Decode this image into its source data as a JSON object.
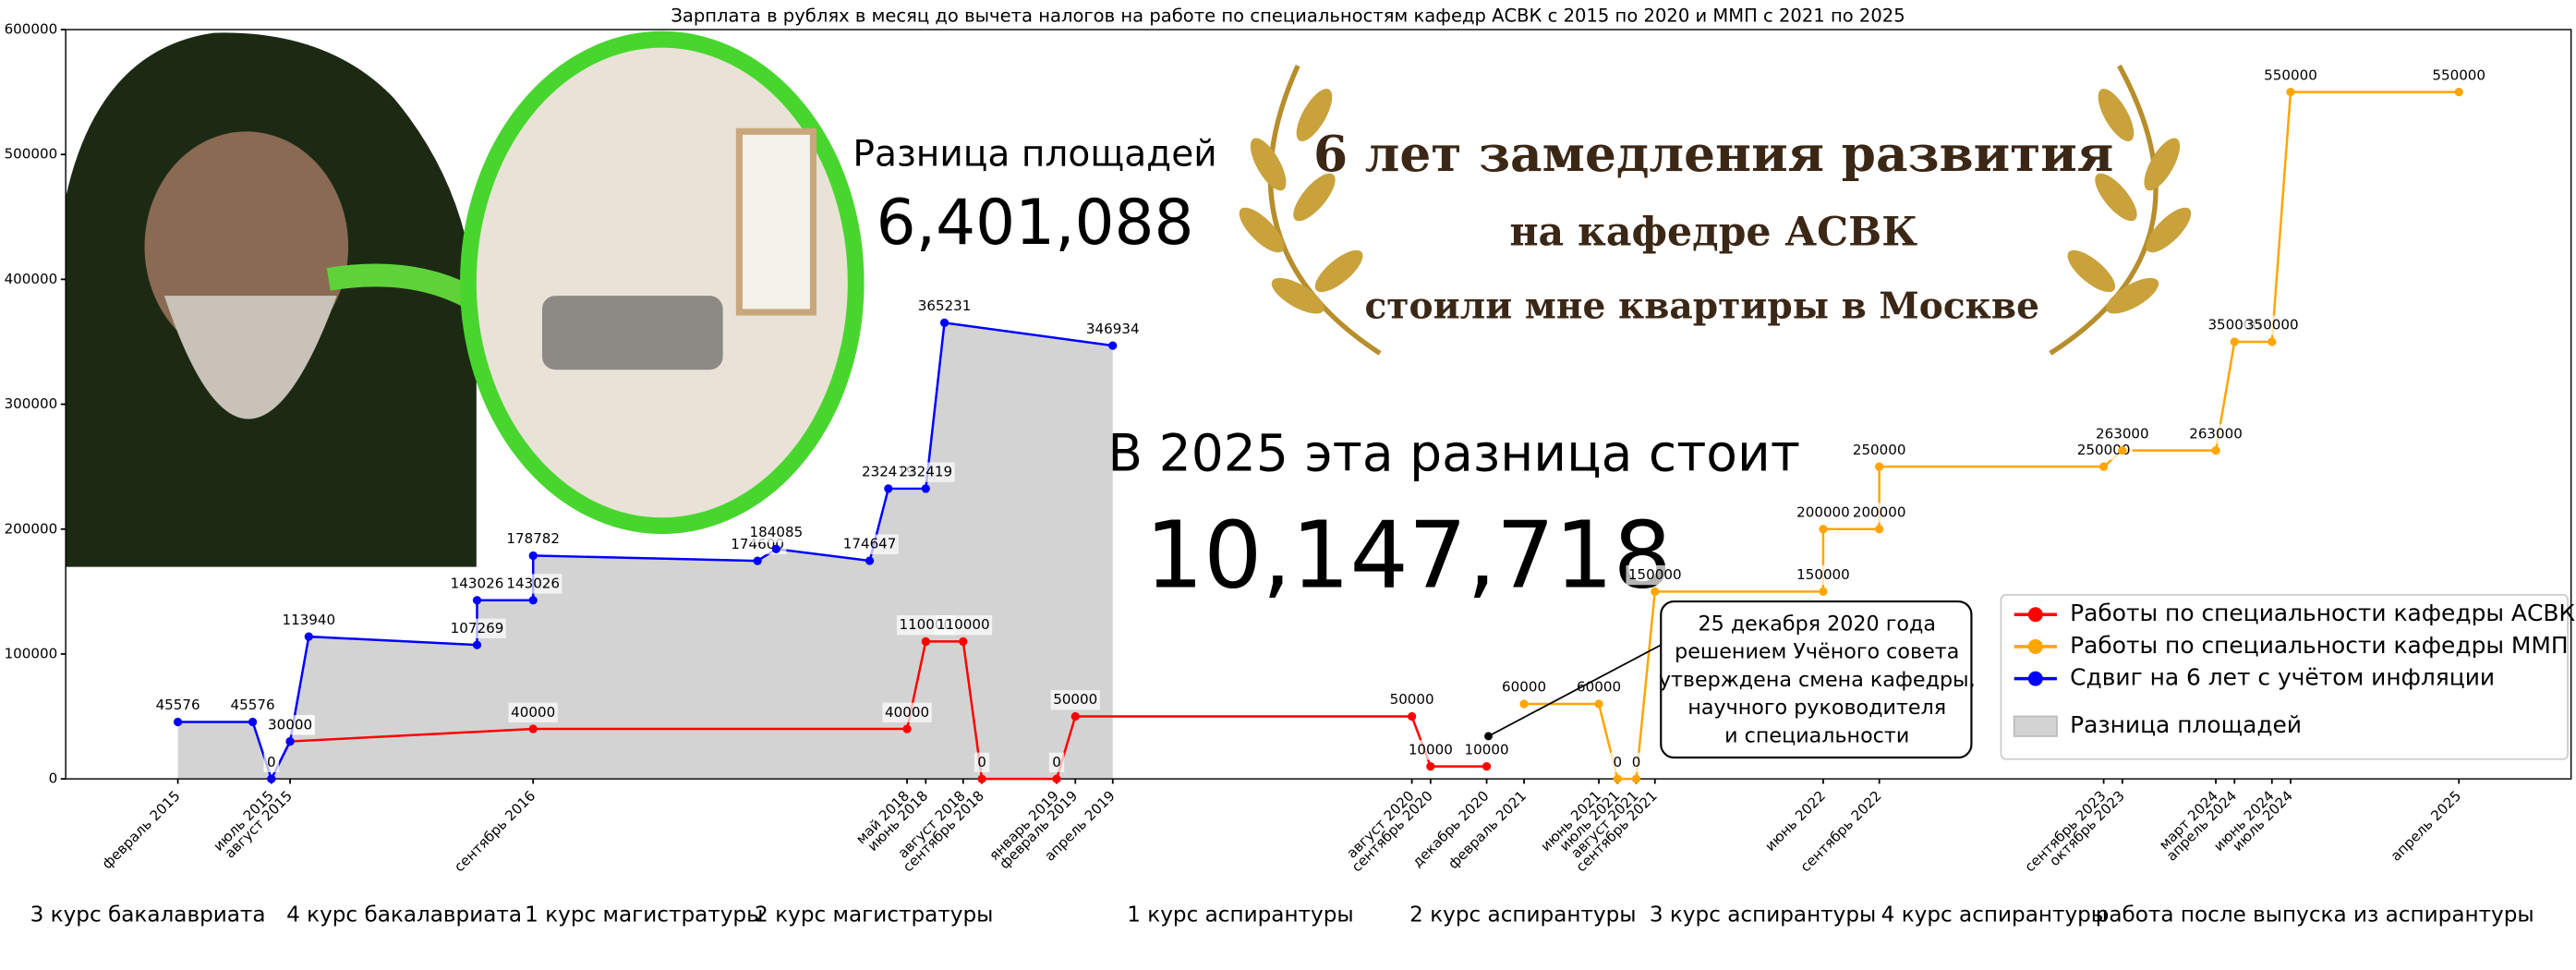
{
  "chart_data": {
    "type": "line",
    "title": "Зарплата в рублях в месяц до вычета налогов на работе по специальностям кафедр АСВК с 2015 по 2020 и ММП с 2021 по 2025",
    "xlim": [
      "2014-08",
      "2025-10"
    ],
    "ylim": [
      0,
      600000
    ],
    "yticks": [
      0,
      100000,
      200000,
      300000,
      400000,
      500000,
      600000
    ],
    "xticks": [
      {
        "value": "2015-02",
        "label": "февраль 2015"
      },
      {
        "value": "2015-07",
        "label": "июль 2015"
      },
      {
        "value": "2015-08",
        "label": "август 2015"
      },
      {
        "value": "2016-09",
        "label": "сентябрь 2016"
      },
      {
        "value": "2018-05",
        "label": "май 2018"
      },
      {
        "value": "2018-06",
        "label": "июнь 2018"
      },
      {
        "value": "2018-08",
        "label": "август 2018"
      },
      {
        "value": "2018-09",
        "label": "сентябрь 2018"
      },
      {
        "value": "2019-01",
        "label": "январь 2019"
      },
      {
        "value": "2019-02",
        "label": "февраль 2019"
      },
      {
        "value": "2019-04",
        "label": "апрель 2019"
      },
      {
        "value": "2020-08",
        "label": "август 2020"
      },
      {
        "value": "2020-09",
        "label": "сентябрь 2020"
      },
      {
        "value": "2020-12",
        "label": "декабрь 2020"
      },
      {
        "value": "2021-02",
        "label": "февраль 2021"
      },
      {
        "value": "2021-06",
        "label": "июнь 2021"
      },
      {
        "value": "2021-07",
        "label": "июль 2021"
      },
      {
        "value": "2021-08",
        "label": "август 2021"
      },
      {
        "value": "2021-09",
        "label": "сентябрь 2021"
      },
      {
        "value": "2022-06",
        "label": "июнь 2022"
      },
      {
        "value": "2022-09",
        "label": "сентябрь 2022"
      },
      {
        "value": "2023-09",
        "label": "сентябрь 2023"
      },
      {
        "value": "2023-10",
        "label": "октябрь 2023"
      },
      {
        "value": "2024-03",
        "label": "март 2024"
      },
      {
        "value": "2024-04",
        "label": "апрель 2024"
      },
      {
        "value": "2024-06",
        "label": "июнь 2024"
      },
      {
        "value": "2024-07",
        "label": "июль 2024"
      },
      {
        "value": "2025-04",
        "label": "апрель 2025"
      }
    ],
    "series": [
      {
        "name": "Работы по специальности кафедры АСВК",
        "color": "#ff0000",
        "x": [
          "2015-07",
          "2015-08",
          "2016-09",
          "2018-05",
          "2018-06",
          "2018-08",
          "2018-09",
          "2019-01",
          "2019-02",
          "2020-08",
          "2020-09",
          "2020-12"
        ],
        "values": [
          0,
          30000,
          40000,
          40000,
          110000,
          110000,
          0,
          0,
          50000,
          50000,
          10000,
          10000
        ]
      },
      {
        "name": "Работы по специальности кафедры ММП",
        "color": "#ffa500",
        "x": [
          "2021-02",
          "2021-06",
          "2021-07",
          "2021-08",
          "2021-09",
          "2022-06",
          "2022-06",
          "2022-09",
          "2022-09",
          "2023-09",
          "2023-10",
          "2024-03",
          "2024-04",
          "2024-06",
          "2024-07",
          "2025-04"
        ],
        "values": [
          60000,
          60000,
          0,
          0,
          150000,
          150000,
          200000,
          200000,
          250000,
          250000,
          263000,
          263000,
          350000,
          350000,
          550000,
          550000
        ]
      },
      {
        "name": "Сдвиг на 6 лет с учётом инфляции",
        "color": "#0000ff",
        "x": [
          "2015-02",
          "2015-06",
          "2015-07",
          "2015-08",
          "2015-09",
          "2016-06",
          "2016-06",
          "2016-09",
          "2016-09",
          "2017-09",
          "2017-10",
          "2018-03",
          "2018-04",
          "2018-06",
          "2018-07",
          "2019-04"
        ],
        "values": [
          45576,
          45576,
          0,
          30000,
          113940,
          107269,
          143026,
          143026,
          178782,
          174600,
          184085,
          174647,
          232419,
          232419,
          365231,
          346934
        ]
      }
    ],
    "area": {
      "name": "Разница площадей",
      "color": "#d3d3d3"
    },
    "legend": "lower right",
    "annotations": {
      "area_title": "Разница площадей",
      "area_value": "6,401,088",
      "cost_title": "В 2025 эта разница стоит",
      "cost_value": "10,147,718",
      "banner": [
        "6 лет замедления развития",
        "на кафедре АСВК",
        "стоили мне квартиры  в Москве"
      ],
      "note": [
        "25 декабря 2020 года",
        "решением Учёного совета",
        "утверждена смена кафедры,",
        "научного руководителя",
        "и специальности"
      ]
    },
    "stages": [
      "3 курс бакалавриата",
      "4 курс бакалавриата",
      "1 курс магистратуры",
      "2 курс магистратуры",
      "1 курс аспирантуры",
      "2 курс аспирантуры",
      "3 курс аспирантуры",
      "4 курс аспирантуры",
      "работа после выпуска из аспирантуры"
    ]
  }
}
